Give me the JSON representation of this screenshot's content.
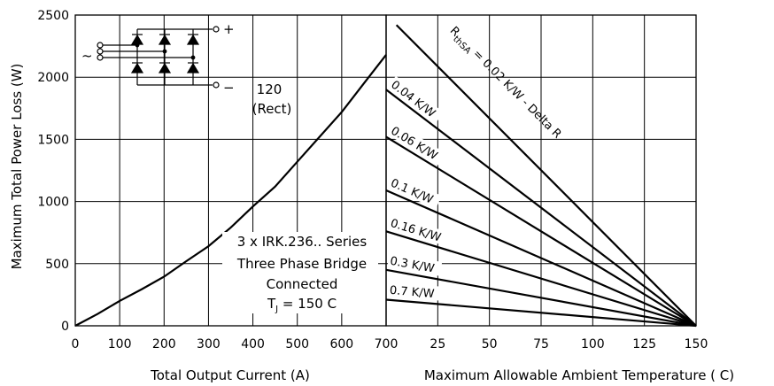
{
  "chart_data": [
    {
      "type": "line",
      "xlabel": "Total Output Current (A)",
      "ylabel": "Maximum Total Power Loss (W)",
      "xlim": [
        0,
        700
      ],
      "ylim": [
        0,
        2500
      ],
      "x_ticks": [
        "0",
        "100",
        "200",
        "300",
        "400",
        "500",
        "600",
        "700"
      ],
      "y_ticks": [
        "0",
        "500",
        "1000",
        "1500",
        "2000",
        "2500"
      ],
      "grid": true,
      "series": [
        {
          "name": "120 (Rect)",
          "x": [
            0,
            50,
            100,
            150,
            200,
            250,
            300,
            350,
            400,
            450,
            500,
            550,
            600,
            650,
            700
          ],
          "y": [
            0,
            95,
            200,
            295,
            395,
            520,
            640,
            790,
            960,
            1120,
            1320,
            1520,
            1720,
            1950,
            2180
          ]
        }
      ],
      "annotations": {
        "curve_label_1": "120",
        "curve_label_2": "(Rect)",
        "device_1": "3 x IRK.236.. Series",
        "device_2": "Three Phase Bridge",
        "device_3": "Connected",
        "tj_main": "T",
        "tj_sub": "J",
        "tj_rest": " = 150 C",
        "ac_symbol": "~",
        "plus": "+",
        "minus": "−"
      }
    },
    {
      "type": "line",
      "xlabel": "Maximum Allowable Ambient Temperature ( C)",
      "xlim": [
        0,
        150
      ],
      "ylim": [
        0,
        2500
      ],
      "x_ticks": [
        "25",
        "50",
        "75",
        "100",
        "125",
        "150"
      ],
      "grid": true,
      "series": [
        {
          "name": "R thSA = 0.02 K/W - Delta R",
          "x": [
            5,
            150
          ],
          "y": [
            2420,
            0
          ]
        },
        {
          "name": "0.04 K/W",
          "x": [
            0,
            150
          ],
          "y": [
            1900,
            0
          ]
        },
        {
          "name": "0.06 K/W",
          "x": [
            0,
            150
          ],
          "y": [
            1520,
            0
          ]
        },
        {
          "name": "0.1 K/W",
          "x": [
            0,
            150
          ],
          "y": [
            1090,
            0
          ]
        },
        {
          "name": "0.16 K/W",
          "x": [
            0,
            150
          ],
          "y": [
            760,
            0
          ]
        },
        {
          "name": "0.3 K/W",
          "x": [
            0,
            150
          ],
          "y": [
            450,
            0
          ]
        },
        {
          "name": "0.7 K/W",
          "x": [
            0,
            150
          ],
          "y": [
            210,
            0
          ]
        }
      ],
      "rthsa_label": {
        "r": "R",
        "sub": "thSA",
        "rest": " = 0.02 K/W - Delta R"
      }
    }
  ]
}
